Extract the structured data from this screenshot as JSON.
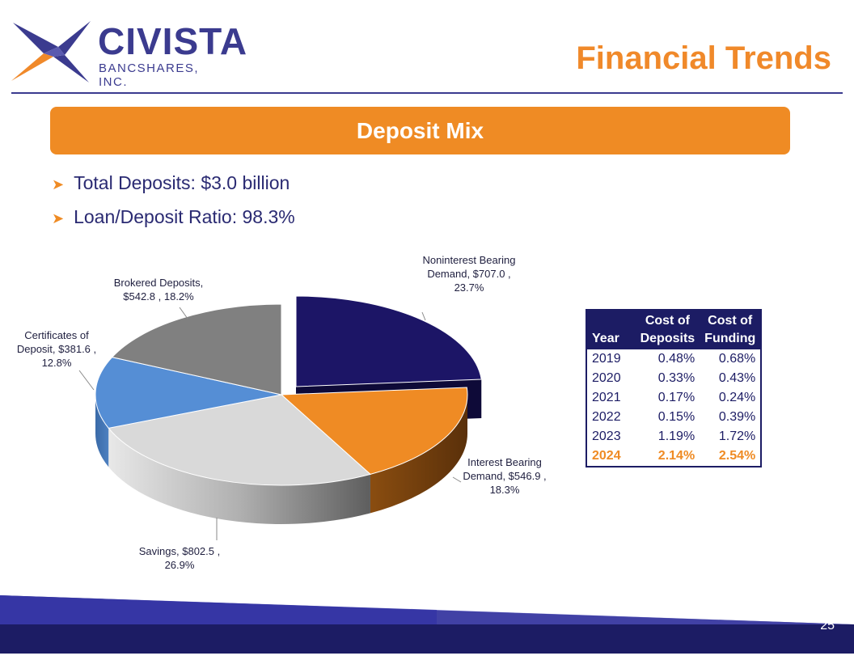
{
  "brand": {
    "name": "CIVISTA",
    "subtitle": "BANCSHARES, INC."
  },
  "page_title": "Financial Trends",
  "banner": "Deposit Mix",
  "bullets": [
    {
      "text": "Total Deposits: $3.0 billion"
    },
    {
      "text": "Loan/Deposit Ratio: 98.3%"
    }
  ],
  "chart_data": {
    "type": "pie",
    "title": "Deposit Mix",
    "units": "$ millions",
    "slices": [
      {
        "name": "Noninterest Bearing Demand",
        "value": 707.0,
        "percent": 23.7,
        "color": "#1c1566",
        "label_lines": [
          "Noninterest Bearing",
          "Demand, $707.0 ,",
          "23.7%"
        ]
      },
      {
        "name": "Interest Bearing Demand",
        "value": 546.9,
        "percent": 18.3,
        "color": "#ef8b24",
        "label_lines": [
          "Interest Bearing",
          "Demand, $546.9 ,",
          "18.3%"
        ]
      },
      {
        "name": "Savings",
        "value": 802.5,
        "percent": 26.9,
        "color": "#d9d9d9",
        "label_lines": [
          "Savings, $802.5 ,",
          "26.9%"
        ]
      },
      {
        "name": "Certificates of Deposit",
        "value": 381.6,
        "percent": 12.8,
        "color": "#558ed5",
        "label_lines": [
          "Certificates of",
          "Deposit, $381.6 ,",
          "12.8%"
        ]
      },
      {
        "name": "Brokered Deposits",
        "value": 542.8,
        "percent": 18.2,
        "color": "#808080",
        "label_lines": [
          "Brokered Deposits,",
          "$542.8 , 18.2%"
        ]
      }
    ]
  },
  "table": {
    "headers": [
      [
        "",
        "Year"
      ],
      [
        "Cost of",
        "Deposits"
      ],
      [
        "Cost of",
        "Funding"
      ]
    ],
    "rows": [
      [
        "2019",
        "0.48%",
        "0.68%"
      ],
      [
        "2020",
        "0.33%",
        "0.43%"
      ],
      [
        "2021",
        "0.17%",
        "0.24%"
      ],
      [
        "2022",
        "0.15%",
        "0.39%"
      ],
      [
        "2023",
        "1.19%",
        "1.72%"
      ],
      [
        "2024",
        "2.14%",
        "2.54%"
      ]
    ],
    "highlight_year": "2024"
  },
  "colors": {
    "navy": "#1c1c64",
    "orange": "#ef8b24",
    "brand_purple": "#3b3b8f"
  },
  "page_number": "25"
}
